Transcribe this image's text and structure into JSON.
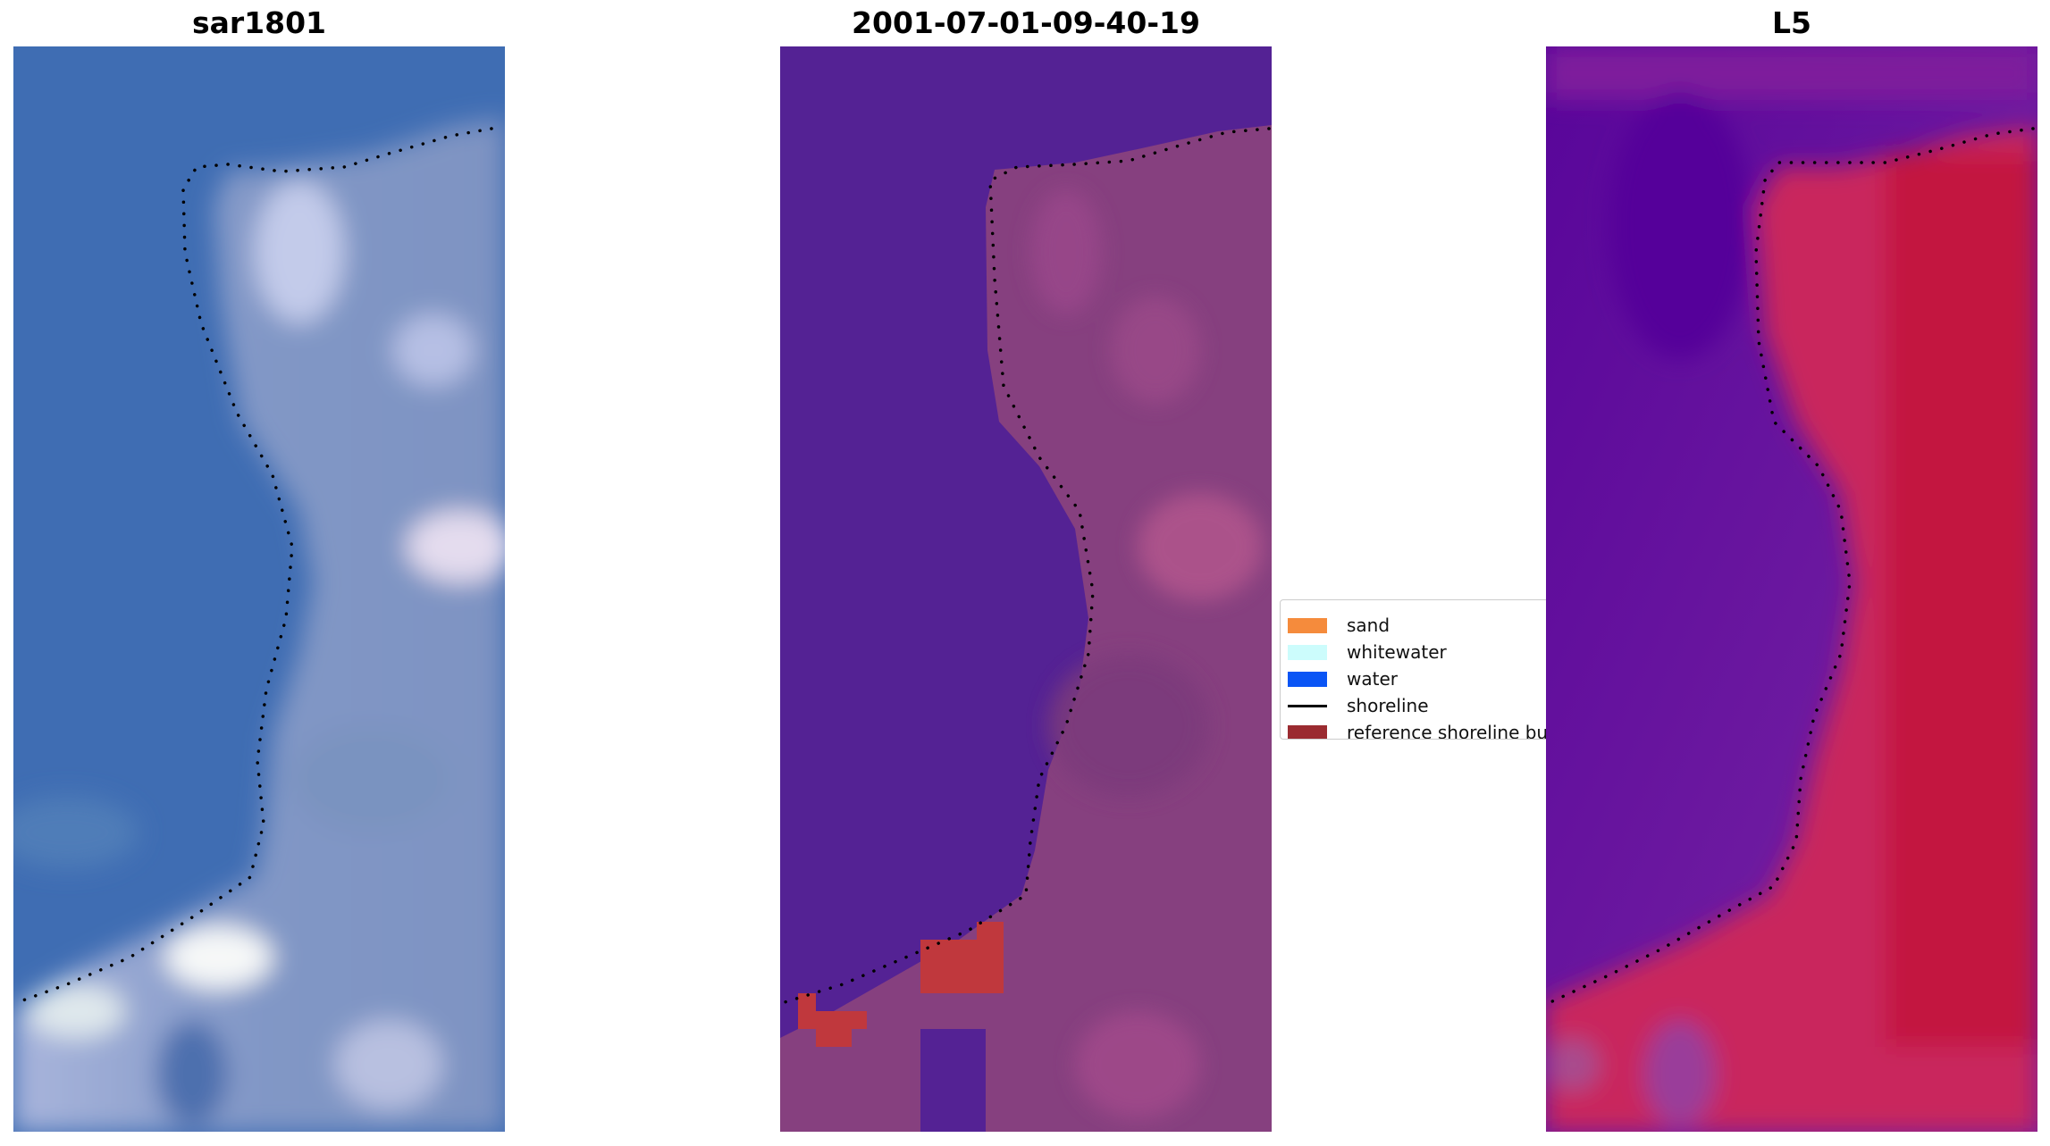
{
  "panels": [
    {
      "title": "sar1801",
      "image": "satellite RGB image"
    },
    {
      "title": "2001-07-01-09-40-19",
      "image": "classified image"
    },
    {
      "title": "L5",
      "image": "index image"
    }
  ],
  "legend": {
    "items": [
      {
        "label": "sand",
        "kind": "patch",
        "color": "#f58b3c"
      },
      {
        "label": "whitewater",
        "kind": "patch",
        "color": "#ccfcfc"
      },
      {
        "label": "water",
        "kind": "patch",
        "color": "#0a55f5"
      },
      {
        "label": "shoreline",
        "kind": "line",
        "color": "#000000"
      },
      {
        "label": "reference shoreline buffer",
        "kind": "patch",
        "color": "#9b2b30"
      }
    ]
  },
  "colors": {
    "rgb_water": "#3f6eb4",
    "rgb_land": "#8fa0c8",
    "class_water": "#542294",
    "class_land": "#8a3f80",
    "class_buffer": "#c0383d",
    "index_low": "#6a1098",
    "index_high": "#c8143c"
  }
}
